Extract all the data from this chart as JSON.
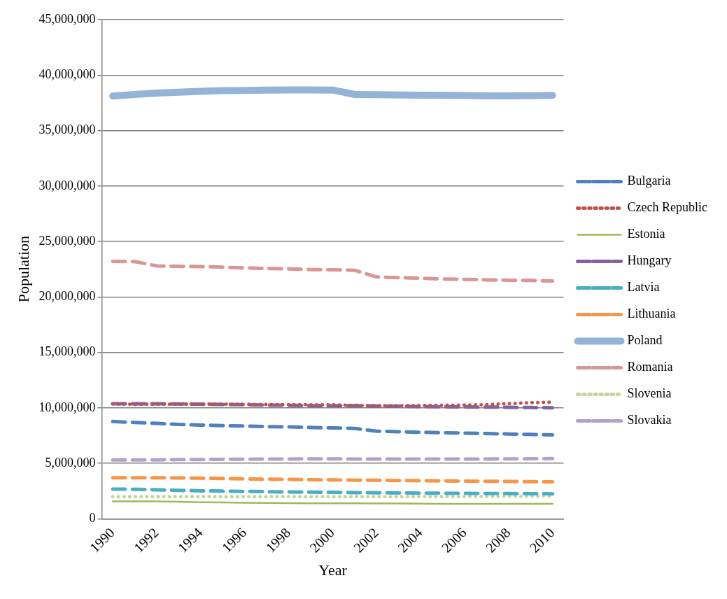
{
  "chart_data": {
    "type": "line",
    "xlabel": "Year",
    "ylabel": "Population",
    "categories": [
      "1990",
      null,
      "1992",
      null,
      "1994",
      null,
      "1996",
      null,
      "1998",
      null,
      "2000",
      null,
      "2002",
      null,
      "2004",
      null,
      "2006",
      null,
      "2008",
      null,
      "2010"
    ],
    "ylim": [
      0,
      45000000
    ],
    "yticks": [
      0,
      {
        "value": 5000000,
        "label": "5,000,000"
      },
      {
        "value": 10000000,
        "label": "10,000,000"
      },
      {
        "value": 15000000,
        "label": "15,000,000"
      },
      {
        "value": 20000000,
        "label": "20,000,000"
      },
      {
        "value": 25000000,
        "label": "25,000,000"
      },
      {
        "value": 30000000,
        "label": "30,000,000"
      },
      {
        "value": 35000000,
        "label": "35,000,000"
      },
      {
        "value": 40000000,
        "label": "40,000,000"
      },
      {
        "value": 45000000,
        "label": "45,000,000"
      }
    ],
    "grid": "y",
    "legend": "right",
    "marker": "none",
    "series": [
      {
        "name": "Bulgaria",
        "color": "#4f81bd",
        "line_style": "dashed",
        "values": [
          8770000,
          8680000,
          8600000,
          8500000,
          8450000,
          8400000,
          8360000,
          8310000,
          8280000,
          8230000,
          8190000,
          8150000,
          7890000,
          7850000,
          7800000,
          7760000,
          7720000,
          7680000,
          7640000,
          7600000,
          7560000
        ]
      },
      {
        "name": "Czech Republic",
        "color": "#c0504d",
        "line_style": "dotted",
        "values": [
          10360000,
          10310000,
          10320000,
          10330000,
          10330000,
          10330000,
          10320000,
          10300000,
          10290000,
          10280000,
          10270000,
          10220000,
          10200000,
          10200000,
          10210000,
          10230000,
          10250000,
          10290000,
          10380000,
          10470000,
          10510000
        ]
      },
      {
        "name": "Estonia",
        "color": "#9bbb59",
        "line_style": "solid",
        "values": [
          1570000,
          1570000,
          1560000,
          1530000,
          1490000,
          1470000,
          1440000,
          1420000,
          1410000,
          1400000,
          1400000,
          1390000,
          1380000,
          1380000,
          1370000,
          1350000,
          1350000,
          1340000,
          1340000,
          1340000,
          1340000
        ]
      },
      {
        "name": "Hungary",
        "color": "#8064a2",
        "line_style": "dashed",
        "values": [
          10370000,
          10370000,
          10370000,
          10350000,
          10330000,
          10300000,
          10290000,
          10250000,
          10230000,
          10200000,
          10200000,
          10190000,
          10160000,
          10140000,
          10120000,
          10100000,
          10080000,
          10070000,
          10050000,
          10030000,
          10010000
        ]
      },
      {
        "name": "Latvia",
        "color": "#4bacc6",
        "line_style": "dashed",
        "values": [
          2670000,
          2660000,
          2610000,
          2560000,
          2520000,
          2490000,
          2470000,
          2440000,
          2420000,
          2400000,
          2380000,
          2360000,
          2340000,
          2330000,
          2310000,
          2300000,
          2290000,
          2280000,
          2270000,
          2260000,
          2250000
        ]
      },
      {
        "name": "Lithuania",
        "color": "#f79646",
        "line_style": "dashed",
        "values": [
          3690000,
          3700000,
          3700000,
          3680000,
          3660000,
          3630000,
          3600000,
          3570000,
          3550000,
          3520000,
          3500000,
          3480000,
          3470000,
          3450000,
          3430000,
          3410000,
          3390000,
          3380000,
          3370000,
          3350000,
          3330000
        ]
      },
      {
        "name": "Poland",
        "color": "#95b3d7",
        "line_style": "solid",
        "values": [
          38110000,
          38250000,
          38370000,
          38460000,
          38540000,
          38590000,
          38620000,
          38650000,
          38660000,
          38660000,
          38650000,
          38250000,
          38230000,
          38200000,
          38180000,
          38170000,
          38160000,
          38130000,
          38120000,
          38140000,
          38170000
        ]
      },
      {
        "name": "Romania",
        "color": "#d99694",
        "line_style": "dashed",
        "values": [
          23200000,
          23190000,
          22790000,
          22760000,
          22730000,
          22680000,
          22620000,
          22570000,
          22530000,
          22470000,
          22440000,
          22400000,
          21800000,
          21740000,
          21680000,
          21620000,
          21580000,
          21540000,
          21500000,
          21480000,
          21440000
        ]
      },
      {
        "name": "Slovenia",
        "color": "#c3d69b",
        "line_style": "dotted",
        "values": [
          2000000,
          2000000,
          2000000,
          2000000,
          2000000,
          2000000,
          2000000,
          2000000,
          2000000,
          2000000,
          2000000,
          2000000,
          2000000,
          2000000,
          2000000,
          2000000,
          2000000,
          2010000,
          2020000,
          2040000,
          2050000
        ]
      },
      {
        "name": "Slovakia",
        "color": "#b3a2c7",
        "line_style": "dashed",
        "values": [
          5300000,
          5300000,
          5310000,
          5330000,
          5340000,
          5360000,
          5370000,
          5380000,
          5390000,
          5400000,
          5400000,
          5380000,
          5380000,
          5380000,
          5380000,
          5380000,
          5390000,
          5390000,
          5400000,
          5410000,
          5430000
        ]
      }
    ]
  }
}
